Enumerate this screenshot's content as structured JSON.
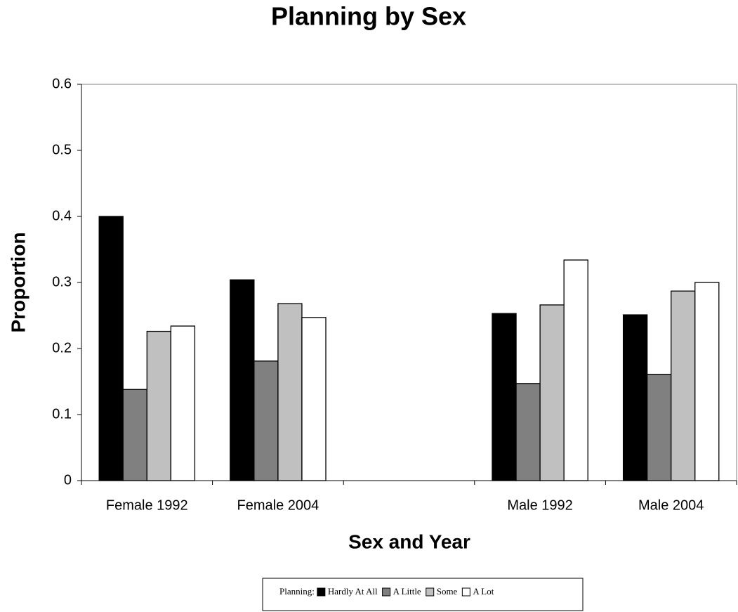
{
  "chart_data": {
    "type": "bar",
    "title": "Planning by Sex",
    "x_label": "Sex and Year",
    "y_label": "Proportion",
    "categories": [
      "Female 1992",
      "Female 2004",
      null,
      "Male 1992",
      "Male 2004"
    ],
    "legend_title": "Planning:",
    "series": [
      {
        "name": "Hardly At All",
        "color": "#000000",
        "values": [
          0.4,
          0.304,
          null,
          0.253,
          0.251
        ]
      },
      {
        "name": "A Little",
        "color": "#808080",
        "values": [
          0.138,
          0.181,
          null,
          0.147,
          0.161
        ]
      },
      {
        "name": "Some",
        "color": "#c0c0c0",
        "values": [
          0.226,
          0.268,
          null,
          0.266,
          0.287
        ]
      },
      {
        "name": "A Lot",
        "color": "#ffffff",
        "values": [
          0.234,
          0.247,
          null,
          0.334,
          0.3
        ]
      }
    ],
    "ylim": [
      0,
      0.6
    ],
    "yticks": [
      0,
      0.1,
      0.2,
      0.3,
      0.4,
      0.5,
      0.6
    ],
    "grid": false,
    "legend": "bottom"
  }
}
